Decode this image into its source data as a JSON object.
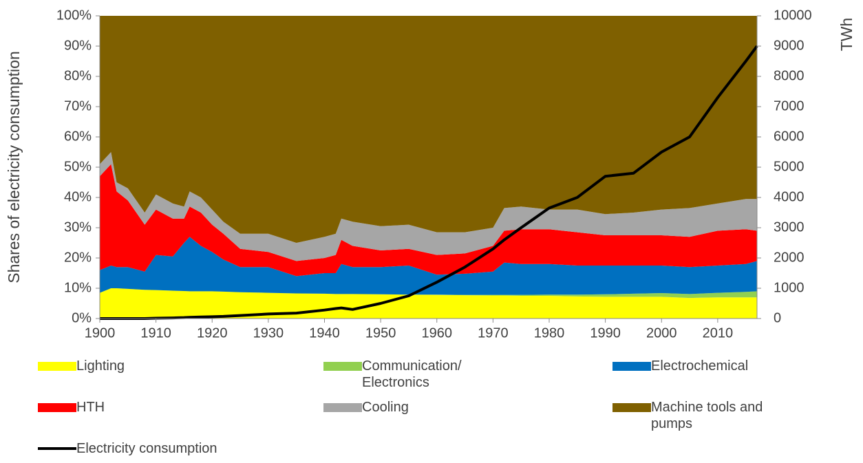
{
  "chart_data": {
    "type": "stacked-area",
    "ylabel": "Shares of electricity consumption",
    "y2label": "TWh",
    "x": [
      1900,
      1902,
      1903,
      1905,
      1908,
      1910,
      1913,
      1915,
      1916,
      1918,
      1920,
      1922,
      1925,
      1930,
      1935,
      1940,
      1942,
      1943,
      1945,
      1950,
      1955,
      1960,
      1965,
      1970,
      1972,
      1975,
      1980,
      1985,
      1990,
      1995,
      2000,
      2005,
      2010,
      2015,
      2017
    ],
    "xlim": [
      1900,
      2017
    ],
    "xticks": [
      1900,
      1910,
      1920,
      1930,
      1940,
      1950,
      1960,
      1970,
      1980,
      1990,
      2000,
      2010
    ],
    "ylim": [
      0,
      100
    ],
    "yticks": [
      {
        "value": 0,
        "label": "0%"
      },
      {
        "value": 10,
        "label": "10%"
      },
      {
        "value": 20,
        "label": "20%"
      },
      {
        "value": 30,
        "label": "30%"
      },
      {
        "value": 40,
        "label": "40%"
      },
      {
        "value": 50,
        "label": "50%"
      },
      {
        "value": 60,
        "label": "60%"
      },
      {
        "value": 70,
        "label": "70%"
      },
      {
        "value": 80,
        "label": "80%"
      },
      {
        "value": 90,
        "label": "90%"
      },
      {
        "value": 100,
        "label": "100%"
      }
    ],
    "y2lim": [
      0,
      10000
    ],
    "y2ticks": [
      0,
      1000,
      2000,
      3000,
      4000,
      5000,
      6000,
      7000,
      8000,
      9000,
      10000
    ],
    "series": [
      {
        "name": "Lighting",
        "color": "#ffff00",
        "values": [
          8.5,
          10,
          10,
          9.8,
          9.5,
          9.4,
          9.2,
          9.1,
          9,
          9,
          9,
          8.9,
          8.7,
          8.5,
          8.3,
          8.2,
          8.1,
          8.1,
          8.1,
          8,
          7.9,
          7.8,
          7.7,
          7.6,
          7.6,
          7.5,
          7.5,
          7.3,
          7.2,
          7.2,
          7.2,
          6.8,
          7,
          7,
          7
        ]
      },
      {
        "name": "Communication/ Electronics",
        "color": "#92d050",
        "values": [
          0,
          0,
          0,
          0,
          0,
          0,
          0,
          0,
          0,
          0,
          0,
          0,
          0,
          0,
          0,
          0,
          0,
          0,
          0,
          0,
          0,
          0.1,
          0.1,
          0.2,
          0.2,
          0.3,
          0.4,
          0.6,
          0.8,
          1,
          1.2,
          1.3,
          1.5,
          1.8,
          2
        ]
      },
      {
        "name": "Electrochemical",
        "color": "#0070c0",
        "values": [
          7.5,
          7.5,
          7,
          7.2,
          6,
          11.6,
          11.3,
          15.9,
          18,
          15,
          13,
          10.6,
          8.3,
          8.5,
          5.7,
          6.8,
          6.9,
          9.9,
          8.9,
          9,
          9.6,
          6.6,
          7,
          7.7,
          10.7,
          10.2,
          10.1,
          9.6,
          9.5,
          9.3,
          9.1,
          8.9,
          9,
          9.2,
          10
        ]
      },
      {
        "name": "HTH",
        "color": "#ff0000",
        "values": [
          31,
          33.5,
          25,
          22,
          15.5,
          15,
          12.5,
          8,
          10,
          11,
          9,
          8.5,
          6,
          5,
          5,
          5,
          6,
          8,
          7,
          5.5,
          5.5,
          6.5,
          6.7,
          8.5,
          10.5,
          11.5,
          11.5,
          11,
          10,
          10,
          10,
          10,
          11.5,
          11.5,
          10
        ]
      },
      {
        "name": "Cooling",
        "color": "#a6a6a6",
        "values": [
          4,
          4,
          3,
          4,
          4,
          5,
          5,
          4,
          5,
          5,
          5,
          4,
          5,
          6,
          6,
          7,
          7,
          7,
          8,
          8,
          8,
          7.5,
          7,
          6,
          7.5,
          7.5,
          6.5,
          7.5,
          7,
          7.5,
          8.5,
          9.5,
          9,
          10,
          10.5
        ]
      },
      {
        "name": "Machine tools and pumps",
        "color": "#7f6000",
        "values": [
          49,
          45,
          55,
          57,
          65,
          59,
          62,
          63,
          58,
          60,
          64,
          68,
          72,
          72,
          75,
          73,
          72,
          67,
          68,
          69.5,
          69,
          71.5,
          71.5,
          70,
          63.5,
          63,
          64,
          64,
          65.5,
          65,
          64,
          63.5,
          62,
          60.5,
          60.5
        ]
      },
      {
        "name": "Electricity consumption",
        "color": "#000000",
        "axis": "y2",
        "type": "line",
        "values": [
          0,
          0,
          0,
          0,
          0,
          10,
          20,
          30,
          40,
          50,
          60,
          70,
          100,
          150,
          180,
          280,
          330,
          350,
          300,
          500,
          750,
          1200,
          1700,
          2300,
          2600,
          3000,
          3650,
          4000,
          4700,
          4800,
          5500,
          6000,
          7300,
          8500,
          9000
        ]
      }
    ]
  }
}
